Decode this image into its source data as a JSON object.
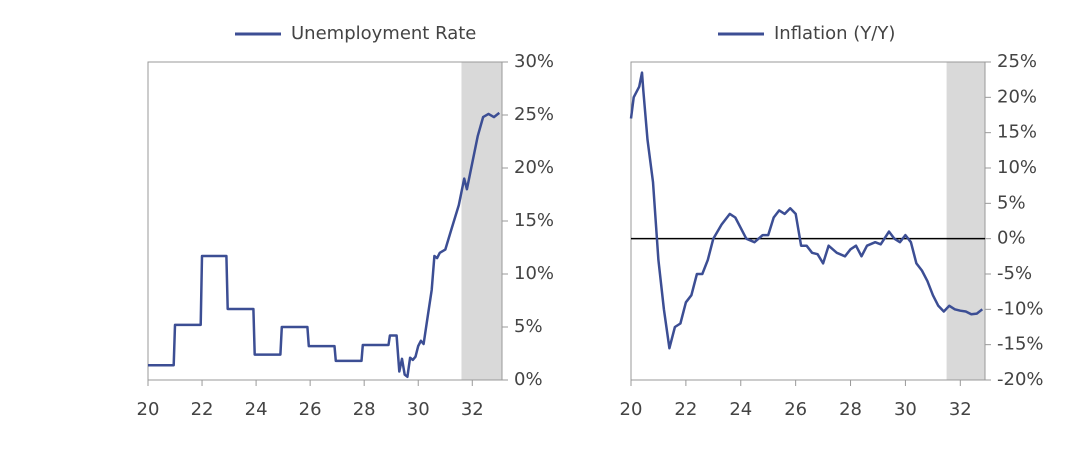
{
  "chart_data": [
    {
      "type": "line",
      "title": null,
      "x_axis_position": "bottom",
      "y_axis_position": "right",
      "legend": "top",
      "frame": true,
      "zero_line": false,
      "shade_from": 31.6,
      "xlim": [
        20,
        33.1
      ],
      "xticks": [
        20,
        22,
        24,
        26,
        28,
        30,
        32
      ],
      "ylim": [
        0,
        30
      ],
      "yticks": [
        {
          "value": 0,
          "label": "0%"
        },
        {
          "value": 5,
          "label": "5%"
        },
        {
          "value": 10,
          "label": "10%"
        },
        {
          "value": 15,
          "label": "15%"
        },
        {
          "value": 20,
          "label": "20%"
        },
        {
          "value": 25,
          "label": "25%"
        },
        {
          "value": 30,
          "label": "30%"
        }
      ],
      "series": [
        {
          "name": "Unemployment Rate",
          "color": "#3c4e94",
          "x": [
            20,
            20.95,
            21,
            21.95,
            22,
            22.9,
            22.95,
            23.9,
            23.95,
            24.9,
            24.95,
            25.9,
            25.95,
            26.9,
            26.95,
            27.9,
            27.95,
            28.9,
            28.95,
            29.2,
            29.3,
            29.4,
            29.5,
            29.6,
            29.7,
            29.8,
            29.9,
            30.0,
            30.1,
            30.2,
            30.35,
            30.5,
            30.6,
            30.7,
            30.8,
            31.0,
            31.2,
            31.5,
            31.7,
            31.8,
            32.0,
            32.2,
            32.4,
            32.6,
            32.8,
            33.0
          ],
          "values": [
            1.4,
            1.4,
            5.2,
            5.2,
            11.7,
            11.7,
            6.7,
            6.7,
            2.4,
            2.4,
            5.0,
            5.0,
            3.2,
            3.2,
            1.8,
            1.8,
            3.3,
            3.3,
            4.2,
            4.2,
            0.8,
            2.0,
            0.5,
            0.3,
            2.1,
            1.9,
            2.2,
            3.2,
            3.7,
            3.4,
            6,
            8.5,
            11.7,
            11.5,
            12,
            12.3,
            14,
            16.5,
            19,
            18,
            20.5,
            23,
            24.8,
            25.1,
            24.8,
            25.2
          ]
        }
      ]
    },
    {
      "type": "line",
      "title": null,
      "x_axis_position": "bottom",
      "y_axis_position": "right",
      "legend": "top",
      "frame": true,
      "zero_line": true,
      "shade_from": 31.5,
      "xlim": [
        20,
        32.9
      ],
      "xticks": [
        20,
        22,
        24,
        26,
        28,
        30,
        32
      ],
      "ylim": [
        -20,
        25
      ],
      "yticks": [
        {
          "value": -20,
          "label": "-20%"
        },
        {
          "value": -15,
          "label": "-15%"
        },
        {
          "value": -10,
          "label": "-10%"
        },
        {
          "value": -5,
          "label": "-5%"
        },
        {
          "value": 0,
          "label": "0%"
        },
        {
          "value": 5,
          "label": "5%"
        },
        {
          "value": 10,
          "label": "10%"
        },
        {
          "value": 15,
          "label": "15%"
        },
        {
          "value": 20,
          "label": "20%"
        },
        {
          "value": 25,
          "label": "25%"
        }
      ],
      "series": [
        {
          "name": "Inflation (Y/Y)",
          "color": "#3c4e94",
          "x": [
            20,
            20.1,
            20.3,
            20.4,
            20.45,
            20.6,
            20.8,
            21.0,
            21.2,
            21.4,
            21.6,
            21.8,
            22.0,
            22.2,
            22.4,
            22.6,
            22.8,
            23.0,
            23.3,
            23.6,
            23.8,
            24.0,
            24.2,
            24.5,
            24.8,
            25.0,
            25.2,
            25.4,
            25.6,
            25.8,
            26.0,
            26.2,
            26.4,
            26.6,
            26.8,
            27.0,
            27.2,
            27.5,
            27.8,
            28.0,
            28.2,
            28.4,
            28.6,
            28.9,
            29.1,
            29.4,
            29.6,
            29.8,
            30.0,
            30.2,
            30.4,
            30.6,
            30.8,
            31.0,
            31.2,
            31.4,
            31.6,
            31.8,
            32.0,
            32.2,
            32.4,
            32.6,
            32.8
          ],
          "values": [
            17,
            20,
            21.5,
            23.5,
            21,
            14,
            8,
            -3,
            -10,
            -15.5,
            -12.5,
            -12,
            -9,
            -8,
            -5,
            -5,
            -3,
            0,
            2,
            3.5,
            3,
            1.5,
            0,
            -0.5,
            0.5,
            0.5,
            3,
            4,
            3.5,
            4.3,
            3.5,
            -1,
            -1,
            -2,
            -2.2,
            -3.5,
            -1,
            -2,
            -2.5,
            -1.5,
            -1,
            -2.5,
            -1,
            -0.5,
            -0.8,
            1,
            0,
            -0.5,
            0.5,
            -0.5,
            -3.5,
            -4.5,
            -6,
            -8,
            -9.5,
            -10.3,
            -9.5,
            -10,
            -10.2,
            -10.3,
            -10.7,
            -10.6,
            -10
          ]
        }
      ]
    }
  ]
}
